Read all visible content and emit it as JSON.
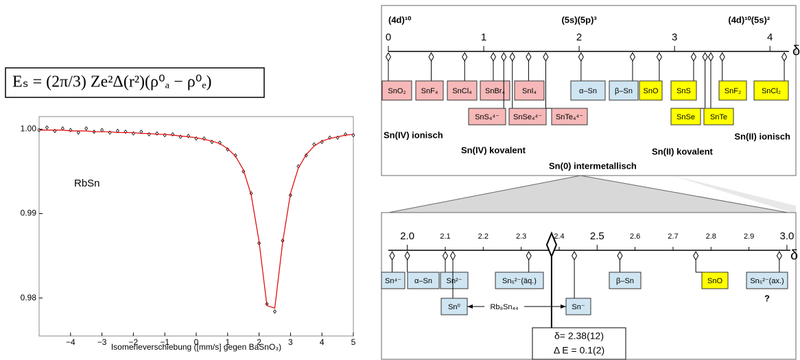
{
  "formula": "Eₛ = (2π/3) Ze²Δ(r²)(ρ⁰ₐ − ρ⁰ₑ)",
  "chart_data": {
    "type": "scatter",
    "annotation": "RbSn",
    "x_label": "Isomerieverschiebung ([mm/s] gegen BaSnO₃)",
    "x": [
      -5,
      -4.75,
      -4.5,
      -4.25,
      -4,
      -3.75,
      -3.5,
      -3.25,
      -3,
      -2.75,
      -2.5,
      -2.25,
      -2,
      -1.75,
      -1.5,
      -1.25,
      -1,
      -0.75,
      -0.5,
      -0.25,
      0,
      0.25,
      0.5,
      0.75,
      1,
      1.25,
      1.5,
      1.75,
      2,
      2.25,
      2.5,
      2.75,
      3,
      3.25,
      3.5,
      3.75,
      4,
      4.25,
      4.5,
      4.75,
      5
    ],
    "xlim": [
      -5,
      5
    ],
    "ylim": [
      0.9755,
      1.0015
    ],
    "xticks": [
      {
        "value": -4,
        "label": "−4"
      },
      {
        "value": -3,
        "label": "−3"
      },
      {
        "value": -2,
        "label": "−2"
      },
      {
        "value": -1,
        "label": "−1"
      },
      0,
      1,
      2,
      3,
      4,
      5
    ],
    "yticks": [
      {
        "value": 1,
        "label": "1.00"
      },
      0.99,
      0.98
    ],
    "series": [
      {
        "color": "#000000",
        "values": [
          0.9999,
          1.0002,
          0.9998,
          1.0001,
          0.9999,
          0.9996,
          1.0001,
          0.9997,
          0.9999,
          0.9996,
          0.9998,
          0.9997,
          0.9995,
          0.9997,
          0.9994,
          0.9995,
          0.9993,
          0.9994,
          0.9991,
          0.9992,
          0.9989,
          0.9989,
          0.9985,
          0.9984,
          0.9976,
          0.9969,
          0.995,
          0.9924,
          0.9865,
          0.9793,
          0.9784,
          0.9868,
          0.9922,
          0.9956,
          0.9969,
          0.9982,
          0.9985,
          0.999,
          0.999,
          0.9994,
          0.9993
        ]
      },
      {
        "type": "line",
        "color": "#e01010",
        "values": [
          0.9999,
          0.9999,
          0.9999,
          0.9999,
          0.9998,
          0.9998,
          0.9998,
          0.9997,
          0.9997,
          0.9997,
          0.9996,
          0.9996,
          0.9996,
          0.9995,
          0.9995,
          0.9994,
          0.9994,
          0.9993,
          0.9992,
          0.9991,
          0.999,
          0.9988,
          0.9986,
          0.9983,
          0.9977,
          0.9968,
          0.9952,
          0.9922,
          0.9867,
          0.9791,
          0.9788,
          0.9866,
          0.9924,
          0.9954,
          0.997,
          0.998,
          0.9986,
          0.9989,
          0.9991,
          0.9993,
          0.9994
        ]
      }
    ]
  },
  "overview_scale": {
    "xlim": [
      0,
      4.2
    ],
    "xticks": [
      0,
      1,
      2,
      3,
      4
    ],
    "axis_symbol": "δ",
    "configurations": [
      {
        "text": "(4d)¹⁰",
        "value": 0
      },
      {
        "text": "(5s)(5p)³",
        "value": 2
      },
      {
        "text": "(4d)¹⁰(5s)²",
        "value": 4
      }
    ],
    "compounds": [
      {
        "label": "SnO₂",
        "delta": 0,
        "color": "#f6b8b8"
      },
      {
        "label": "SnF₄",
        "delta": 0.45,
        "color": "#f6b8b8"
      },
      {
        "label": "SnCl₄",
        "delta": 0.8,
        "color": "#f6b8b8"
      },
      {
        "label": "SnBr₄",
        "delta": 1.1,
        "color": "#f6b8b8"
      },
      {
        "label": "SnI₄",
        "delta": 1.47,
        "color": "#f6b8b8"
      },
      {
        "label": "SnS₄⁴⁻",
        "delta": 1.21,
        "color": "#f6b8b8"
      },
      {
        "label": "SnSe₄⁴⁻",
        "delta": 1.3,
        "color": "#f6b8b8"
      },
      {
        "label": "SnTe₄⁴⁻",
        "delta": 1.65,
        "color": "#f6b8b8"
      },
      {
        "label": "α–Sn",
        "delta": 2.02,
        "color": "#cfe5f2"
      },
      {
        "label": "β–Sn",
        "delta": 2.56,
        "color": "#cfe5f2"
      },
      {
        "label": "SnO",
        "delta": 2.84,
        "color": "#ffff00"
      },
      {
        "label": "SnS",
        "delta": 3.2,
        "color": "#ffff00"
      },
      {
        "label": "SnSe",
        "delta": 3.32,
        "color": "#ffff00"
      },
      {
        "label": "SnTe",
        "delta": 3.38,
        "color": "#ffff00"
      },
      {
        "label": "SnF₂",
        "delta": 3.5,
        "color": "#ffff00"
      },
      {
        "label": "SnCl₂",
        "delta": 4.15,
        "color": "#ffff00"
      }
    ],
    "groups": [
      {
        "text": "Sn(IV) ionisch",
        "color": "#8b1a1a"
      },
      {
        "text": "Sn(IV) kovalent",
        "color": "#8b1a1a"
      },
      {
        "text": "Sn(0) intermetallisch",
        "color": "#1a1aa0"
      },
      {
        "text": "Sn(II) kovalent",
        "color": "#000000"
      },
      {
        "text": "Sn(II) ionisch",
        "color": "#000000"
      }
    ]
  },
  "detail_scale": {
    "xlim": [
      1.95,
      3.02
    ],
    "xticks": [
      {
        "value": 2,
        "label": "2.0"
      },
      2.1,
      2.2,
      2.3,
      2.4,
      2.5,
      2.6,
      2.7,
      2.8,
      2.9,
      {
        "value": 3,
        "label": "3.0"
      }
    ],
    "axis_symbol": "δ",
    "compounds": [
      {
        "label": "Sn⁴⁻",
        "delta": 1.96,
        "color": "#cfe5f2"
      },
      {
        "label": "α–Sn",
        "delta": 2.0,
        "color": "#cfe5f2"
      },
      {
        "label": "Sn²⁻",
        "delta": 2.1,
        "color": "#cfe5f2"
      },
      {
        "label": "Sn₅²⁻(äq.)",
        "delta": 2.32,
        "color": "#cfe5f2"
      },
      {
        "label": "β–Sn",
        "delta": 2.56,
        "color": "#cfe5f2"
      },
      {
        "label": "SnO",
        "delta": 2.76,
        "color": "#ffff00"
      },
      {
        "label": "Sn₅²⁻(ax.)",
        "delta": 2.98,
        "color": "#cfe5f2"
      },
      {
        "label": "Sn⁰",
        "delta": 2.12,
        "color": "#cfe5f2"
      },
      {
        "label": "Sn⁻",
        "delta": 2.44,
        "color": "#cfe5f2"
      }
    ],
    "bridge_label": "Rb₈Sn₄₄",
    "question": "?",
    "result": {
      "delta": 2.38,
      "delta_label": "δ= 2.38(12)",
      "quadrupole_label": "Δ E = 0.1(2)"
    }
  }
}
